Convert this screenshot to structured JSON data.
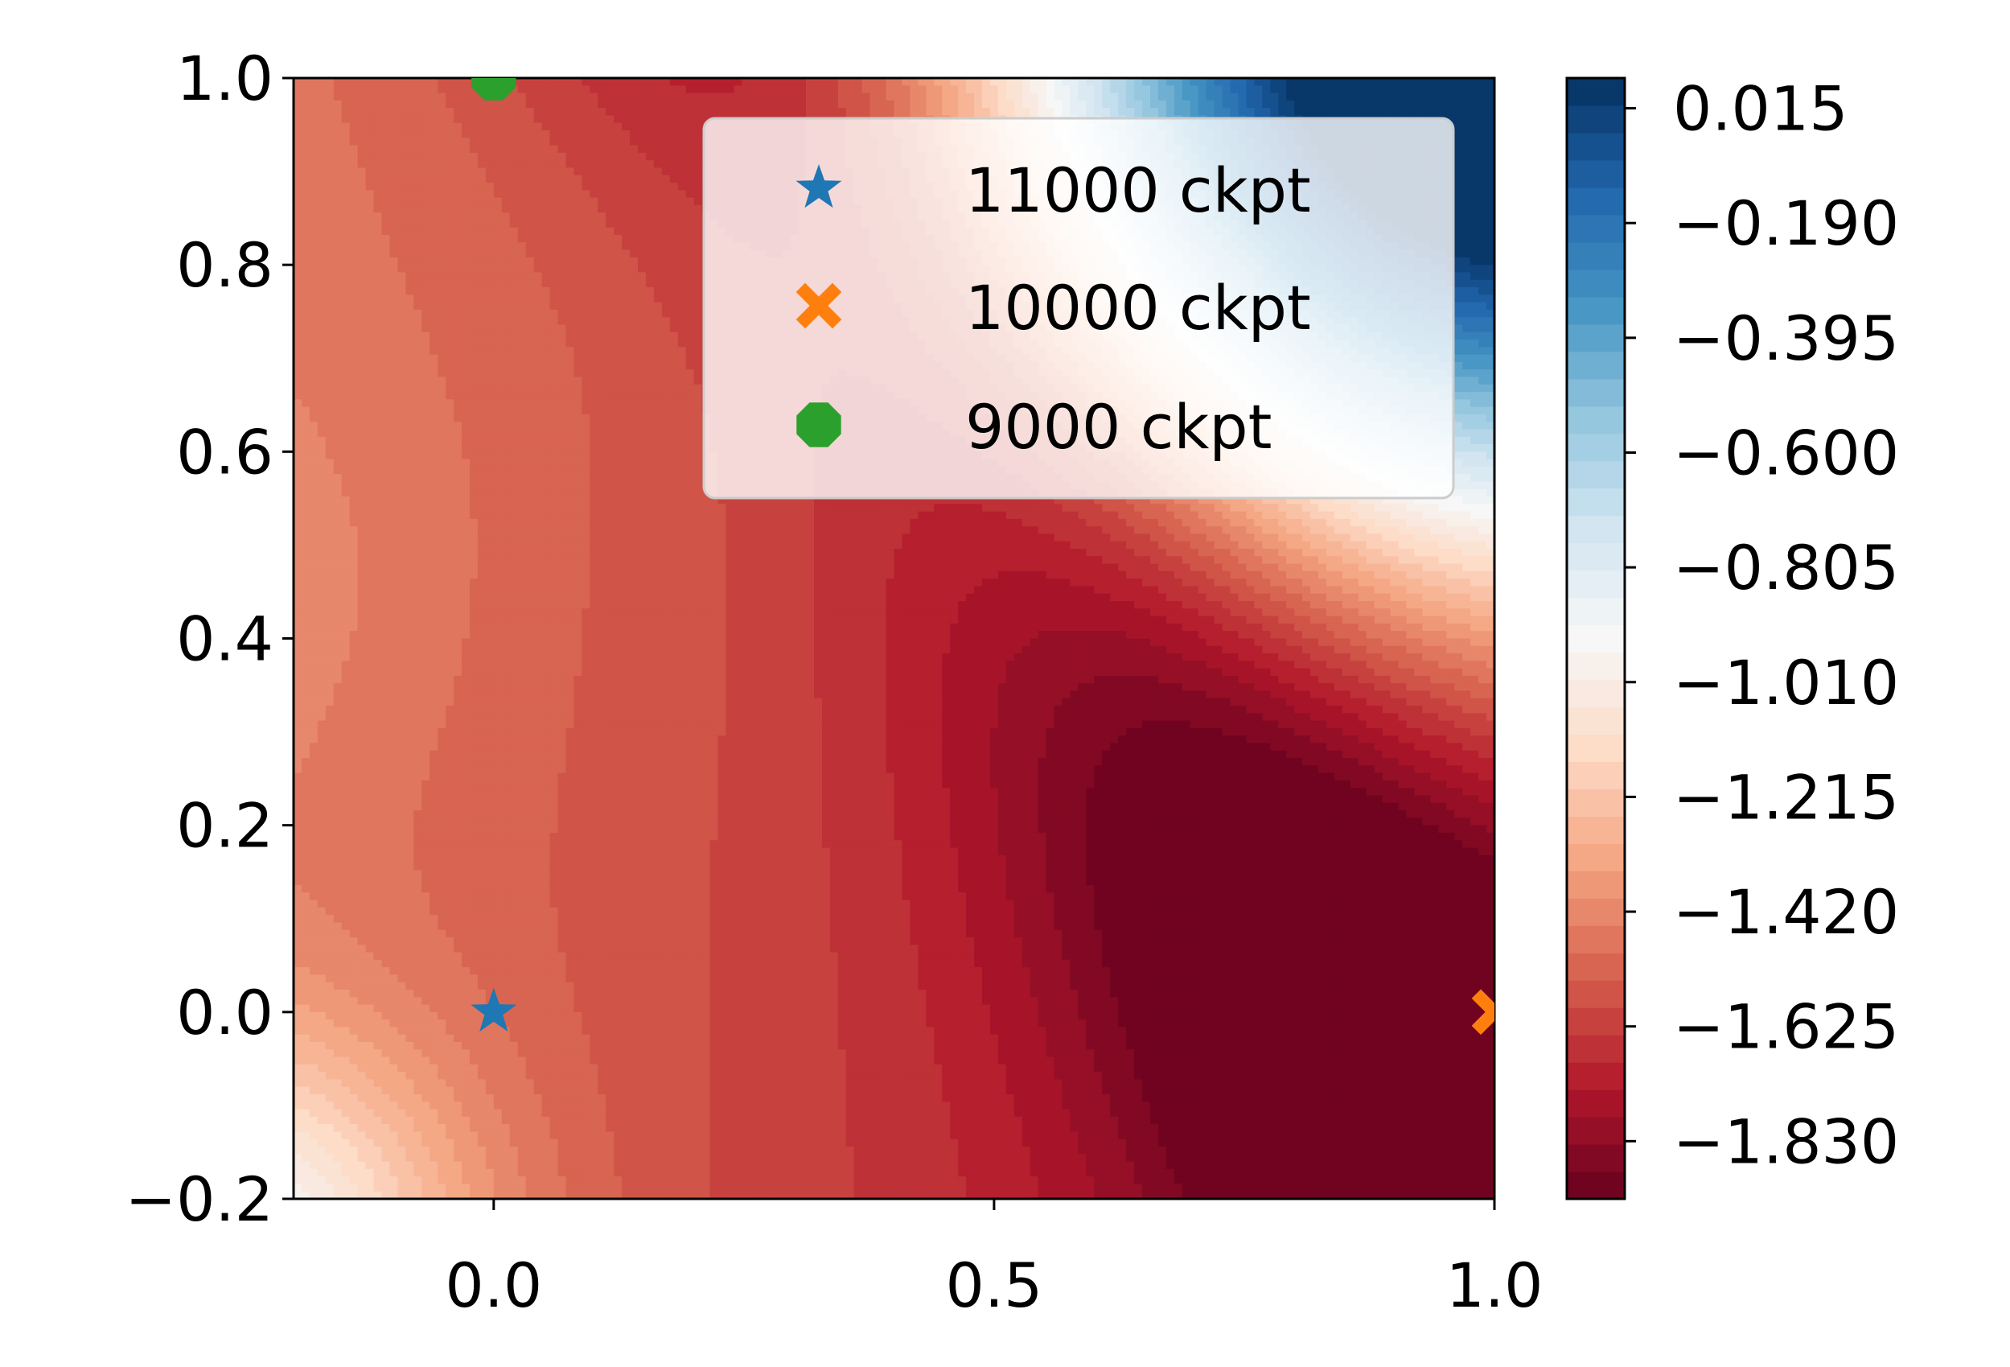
{
  "chart_data": {
    "type": "contour",
    "xlim": [
      -0.2,
      1.0
    ],
    "ylim": [
      -0.2,
      1.0
    ],
    "x_ticks": [
      0.0,
      0.5,
      1.0
    ],
    "x_tick_labels": [
      "0.0",
      "0.5",
      "1.0"
    ],
    "y_ticks": [
      -0.2,
      0.0,
      0.2,
      0.4,
      0.6,
      0.8,
      1.0
    ],
    "y_tick_labels": [
      "−0.2",
      "0.0",
      "0.2",
      "0.4",
      "0.6",
      "0.8",
      "1.0"
    ],
    "colormap": "RdBu",
    "colorbar": {
      "range": [
        -1.933,
        0.069
      ],
      "levels": 41,
      "ticks": [
        0.015,
        -0.19,
        -0.395,
        -0.6,
        -0.805,
        -1.01,
        -1.215,
        -1.42,
        -1.625,
        -1.83
      ],
      "tick_labels": [
        "0.015",
        "−0.190",
        "−0.395",
        "−0.600",
        "−0.805",
        "−1.010",
        "−1.215",
        "−1.420",
        "−1.625",
        "−1.830"
      ]
    },
    "series": [
      {
        "name": "11000 ckpt",
        "marker": "star",
        "color": "#1f77b4",
        "x": [
          0.0
        ],
        "y": [
          0.0
        ]
      },
      {
        "name": "10000 ckpt",
        "marker": "x-filled",
        "color": "#ff7f0e",
        "x": [
          1.0
        ],
        "y": [
          0.0
        ]
      },
      {
        "name": "9000 ckpt",
        "marker": "octagon",
        "color": "#2ca02c",
        "x": [
          0.0
        ],
        "y": [
          1.0
        ]
      }
    ],
    "legend_position": "top-right",
    "grid": false
  }
}
